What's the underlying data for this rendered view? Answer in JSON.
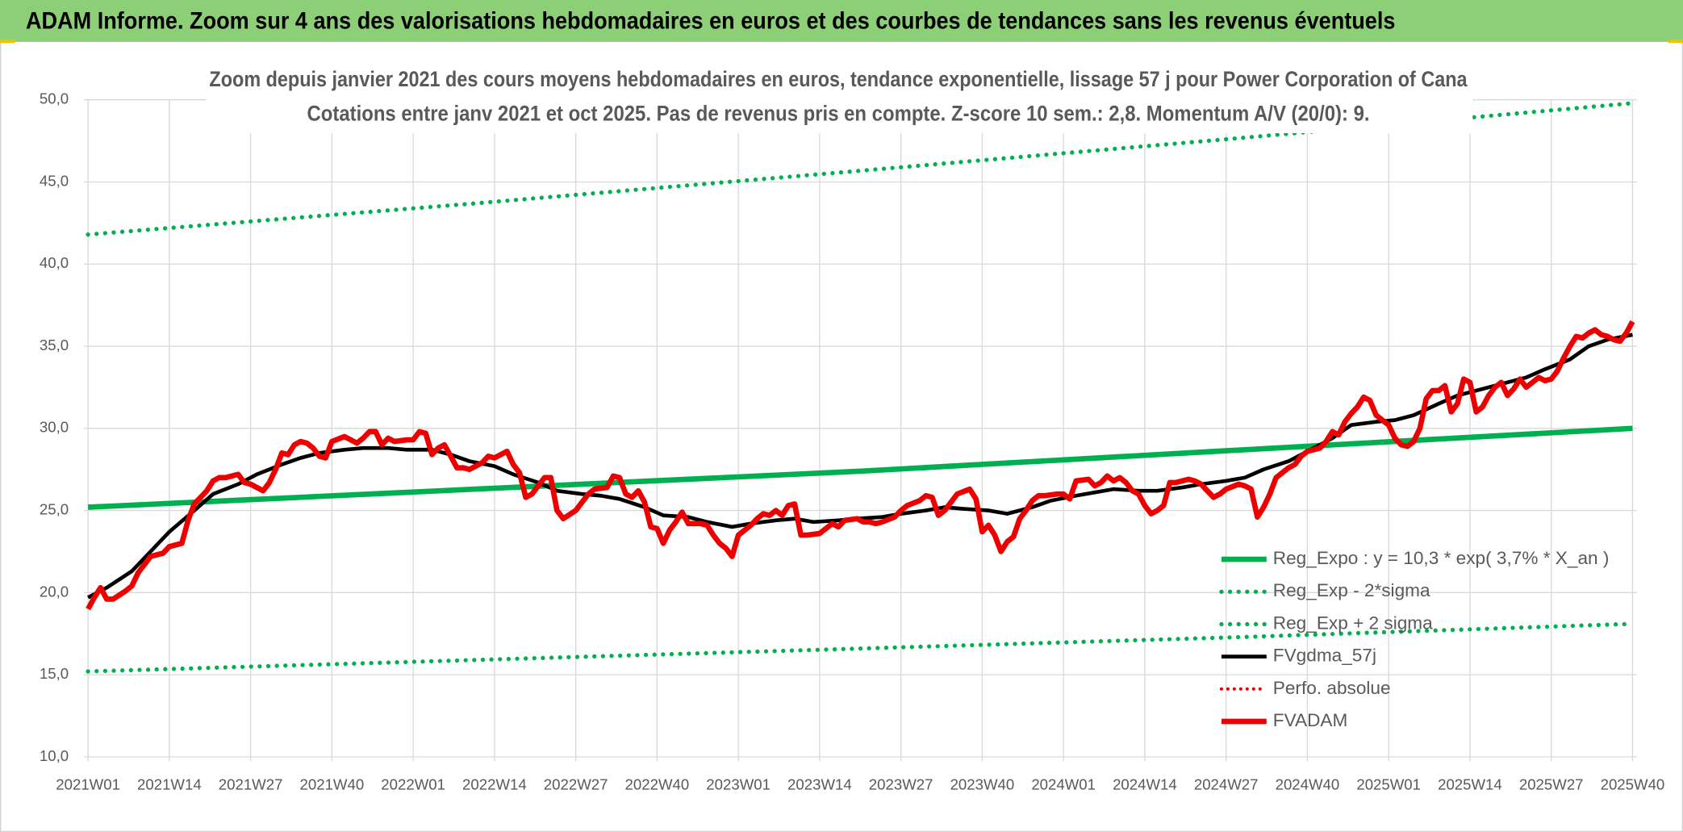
{
  "chart_data": {
    "type": "line",
    "header": "ADAM Informe. Zoom sur 4 ans des valorisations hebdomadaires en euros et des courbes de tendances sans les revenus éventuels",
    "title": "Zoom depuis janvier 2021 des cours moyens hebdomadaires en euros, tendance exponentielle, lissage 57 j pour Power Corporation of Cana",
    "subtitle": "Cotations entre janv 2021 et oct 2025. Pas de revenus pris en compte. Z-score 10 sem.: 2,8. Momentum A/V (20/0): 9.",
    "xlim": [
      0,
      247
    ],
    "xticks": [
      {
        "value": 0,
        "label": "2021W01"
      },
      {
        "value": 13,
        "label": "2021W14"
      },
      {
        "value": 26,
        "label": "2021W27"
      },
      {
        "value": 39,
        "label": "2021W40"
      },
      {
        "value": 52,
        "label": "2022W01"
      },
      {
        "value": 65,
        "label": "2022W14"
      },
      {
        "value": 78,
        "label": "2022W27"
      },
      {
        "value": 91,
        "label": "2022W40"
      },
      {
        "value": 104,
        "label": "2023W01"
      },
      {
        "value": 117,
        "label": "2023W14"
      },
      {
        "value": 130,
        "label": "2023W27"
      },
      {
        "value": 143,
        "label": "2023W40"
      },
      {
        "value": 156,
        "label": "2024W01"
      },
      {
        "value": 169,
        "label": "2024W14"
      },
      {
        "value": 182,
        "label": "2024W27"
      },
      {
        "value": 195,
        "label": "2024W40"
      },
      {
        "value": 208,
        "label": "2025W01"
      },
      {
        "value": 221,
        "label": "2025W14"
      },
      {
        "value": 234,
        "label": "2025W27"
      },
      {
        "value": 247,
        "label": "2025W40"
      }
    ],
    "ylim": [
      10,
      50
    ],
    "yticks": [
      {
        "value": 10,
        "label": "10,0"
      },
      {
        "value": 15,
        "label": "15,0"
      },
      {
        "value": 20,
        "label": "20,0"
      },
      {
        "value": 25,
        "label": "25,0"
      },
      {
        "value": 30,
        "label": "30,0"
      },
      {
        "value": 35,
        "label": "35,0"
      },
      {
        "value": 40,
        "label": "40,0"
      },
      {
        "value": 45,
        "label": "45,0"
      },
      {
        "value": 50,
        "label": "50,0"
      }
    ],
    "grid": true,
    "legend": "lower right",
    "series": [
      {
        "name": "Reg_Expo : y = 10,3 * exp( 3,7% *  X_an )",
        "color": "#00b050",
        "style": "solid",
        "width": 5,
        "x": [
          0,
          62,
          124,
          185,
          247
        ],
        "values": [
          25.2,
          26.3,
          27.4,
          28.7,
          30.0
        ]
      },
      {
        "name": "Reg_Exp - 2*sigma",
        "color": "#00b050",
        "style": "dotted",
        "width": 4,
        "x": [
          0,
          62,
          124,
          185,
          247
        ],
        "values": [
          15.2,
          15.9,
          16.6,
          17.3,
          18.1
        ]
      },
      {
        "name": "Reg_Exp + 2 sigma",
        "color": "#00b050",
        "style": "dotted",
        "width": 4,
        "x": [
          0,
          62,
          124,
          185,
          247
        ],
        "values": [
          41.8,
          43.7,
          45.7,
          47.7,
          49.8
        ]
      },
      {
        "name": "FVgdma_57j",
        "color": "#000000",
        "style": "solid",
        "width": 3.5,
        "x": [
          0,
          3,
          7,
          10,
          13,
          17,
          20,
          24,
          27,
          31,
          34,
          37,
          41,
          44,
          48,
          51,
          55,
          58,
          61,
          65,
          68,
          72,
          75,
          79,
          82,
          85,
          89,
          92,
          96,
          99,
          103,
          106,
          110,
          113,
          116,
          120,
          123,
          127,
          130,
          134,
          137,
          140,
          144,
          147,
          151,
          154,
          158,
          161,
          164,
          168,
          171,
          175,
          178,
          182,
          185,
          188,
          192,
          195,
          199,
          202,
          206,
          209,
          212,
          216,
          219,
          223,
          226,
          230,
          233,
          237,
          240,
          243,
          247
        ],
        "values": [
          19.7,
          20.3,
          21.3,
          22.5,
          23.7,
          25.0,
          26.0,
          26.6,
          27.2,
          27.8,
          28.2,
          28.5,
          28.7,
          28.8,
          28.8,
          28.7,
          28.7,
          28.4,
          28.0,
          27.7,
          27.2,
          26.7,
          26.2,
          26.0,
          25.9,
          25.7,
          25.2,
          24.7,
          24.6,
          24.3,
          24.0,
          24.2,
          24.4,
          24.5,
          24.3,
          24.4,
          24.5,
          24.6,
          24.8,
          25.0,
          25.2,
          25.1,
          25.0,
          24.8,
          25.2,
          25.6,
          25.9,
          26.1,
          26.3,
          26.2,
          26.2,
          26.4,
          26.6,
          26.8,
          27.0,
          27.5,
          28.0,
          28.6,
          29.4,
          30.2,
          30.4,
          30.5,
          30.8,
          31.5,
          32.0,
          32.4,
          32.7,
          33.1,
          33.6,
          34.2,
          35.0,
          35.4,
          35.7
        ]
      },
      {
        "name": "Perfo. absolue",
        "color": "#e00000",
        "style": "dotted",
        "width": 3
      },
      {
        "name": "FVADAM",
        "color": "#ee0000",
        "style": "solid",
        "width": 5,
        "x": [
          0,
          1,
          2,
          3,
          4,
          6,
          7,
          8,
          10,
          11,
          12,
          13,
          15,
          16,
          17,
          19,
          20,
          21,
          22,
          24,
          25,
          26,
          28,
          29,
          30,
          31,
          32,
          33,
          34,
          35,
          36,
          37,
          38,
          39,
          41,
          43,
          44,
          45,
          46,
          47,
          48,
          49,
          51,
          52,
          53,
          54,
          55,
          56,
          57,
          58,
          59,
          60,
          61,
          63,
          64,
          65,
          67,
          68,
          69,
          70,
          71,
          72,
          73,
          74,
          75,
          76,
          78,
          79,
          80,
          81,
          83,
          84,
          85,
          86,
          87,
          88,
          89,
          90,
          91,
          92,
          93,
          94,
          95,
          96,
          98,
          99,
          100,
          101,
          102,
          103,
          104,
          106,
          107,
          108,
          109,
          110,
          111,
          112,
          113,
          114,
          115,
          117,
          118,
          119,
          120,
          121,
          123,
          124,
          125,
          126,
          127,
          129,
          130,
          131,
          133,
          134,
          135,
          136,
          137,
          138,
          139,
          141,
          142,
          143,
          144,
          145,
          146,
          147,
          148,
          149,
          150,
          151,
          152,
          153,
          155,
          156,
          157,
          158,
          160,
          161,
          162,
          163,
          164,
          165,
          166,
          167,
          168,
          169,
          170,
          171,
          172,
          173,
          174,
          176,
          177,
          178,
          179,
          180,
          181,
          182,
          184,
          185,
          186,
          187,
          188,
          189,
          190,
          192,
          193,
          194,
          195,
          197,
          198,
          199,
          200,
          201,
          202,
          203,
          204,
          205,
          206,
          208,
          209,
          210,
          211,
          212,
          213,
          214,
          215,
          216,
          217,
          218,
          219,
          220,
          221,
          222,
          223,
          224,
          225,
          226,
          227,
          228,
          229,
          230,
          231,
          232,
          233,
          234,
          235,
          236,
          237,
          238,
          239,
          240,
          241,
          242,
          243,
          244,
          245,
          246,
          247
        ],
        "values": [
          19.0,
          19.7,
          20.3,
          19.6,
          19.6,
          20.1,
          20.4,
          21.2,
          22.2,
          22.3,
          22.4,
          22.8,
          23.0,
          24.4,
          25.4,
          26.2,
          26.8,
          27.0,
          27.0,
          27.2,
          26.7,
          26.6,
          26.2,
          26.7,
          27.5,
          28.5,
          28.4,
          29.0,
          29.2,
          29.1,
          28.8,
          28.3,
          28.2,
          29.2,
          29.5,
          29.1,
          29.4,
          29.8,
          29.8,
          29.0,
          29.4,
          29.2,
          29.3,
          29.3,
          29.8,
          29.7,
          28.4,
          28.8,
          29.0,
          28.3,
          27.6,
          27.6,
          27.5,
          27.9,
          28.3,
          28.2,
          28.6,
          27.8,
          27.3,
          25.8,
          26.0,
          26.5,
          27.0,
          27.0,
          25.0,
          24.5,
          25.0,
          25.5,
          26.0,
          26.3,
          26.4,
          27.1,
          27.0,
          26.0,
          25.8,
          26.2,
          25.5,
          24.0,
          23.9,
          23.0,
          23.8,
          24.3,
          24.9,
          24.2,
          24.2,
          24.1,
          23.5,
          23.0,
          22.7,
          22.2,
          23.5,
          24.1,
          24.5,
          24.8,
          24.7,
          25.0,
          24.7,
          25.3,
          25.4,
          23.5,
          23.5,
          23.6,
          23.9,
          24.2,
          24.0,
          24.4,
          24.5,
          24.3,
          24.3,
          24.2,
          24.3,
          24.6,
          25.0,
          25.3,
          25.6,
          25.9,
          25.8,
          24.7,
          25.0,
          25.5,
          26.0,
          26.3,
          25.7,
          23.7,
          24.1,
          23.5,
          22.5,
          23.1,
          23.4,
          24.5,
          25.0,
          25.6,
          25.9,
          25.9,
          26.0,
          26.0,
          25.7,
          26.8,
          26.9,
          26.5,
          26.7,
          27.1,
          26.8,
          27.0,
          26.7,
          26.2,
          26.0,
          25.3,
          24.8,
          25.0,
          25.3,
          26.7,
          26.7,
          26.9,
          26.8,
          26.6,
          26.2,
          25.8,
          26.0,
          26.3,
          26.6,
          26.5,
          26.3,
          24.6,
          25.2,
          26.0,
          27.0,
          27.6,
          27.8,
          28.3,
          28.6,
          28.8,
          29.2,
          29.8,
          29.6,
          30.4,
          30.9,
          31.3,
          31.9,
          31.7,
          30.8,
          30.2,
          29.4,
          29.0,
          28.9,
          29.2,
          30.0,
          31.8,
          32.3,
          32.3,
          32.6,
          31.0,
          31.5,
          33.0,
          32.8,
          31.0,
          31.3,
          32.0,
          32.5,
          32.8,
          32.0,
          32.4,
          33.0,
          32.5,
          32.8,
          33.1,
          32.9,
          33.0,
          33.5,
          34.3,
          35.0,
          35.6,
          35.5,
          35.8,
          36.0,
          35.7,
          35.6,
          35.4,
          35.3,
          35.8,
          36.5
        ]
      }
    ]
  }
}
